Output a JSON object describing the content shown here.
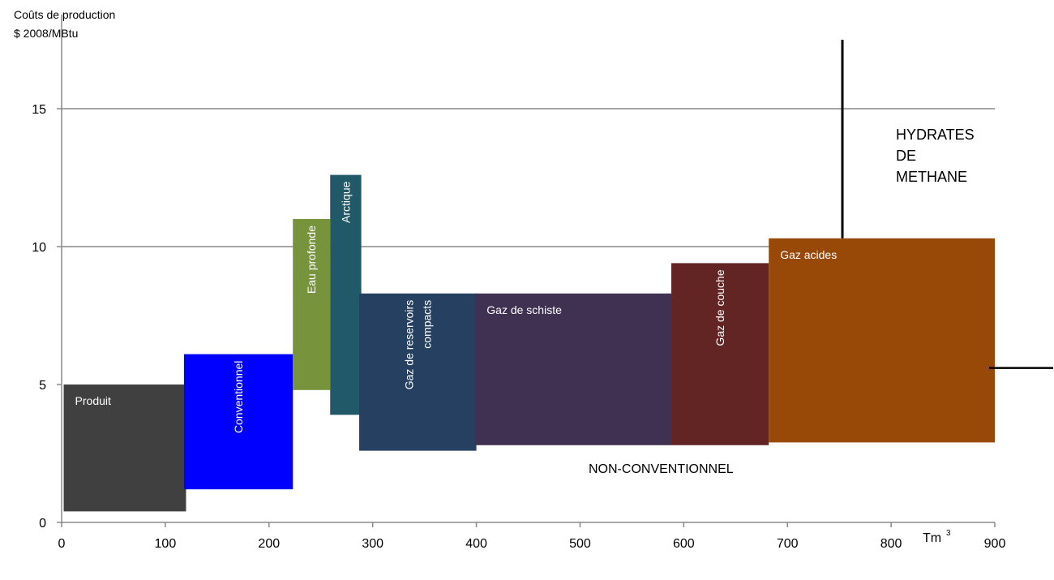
{
  "chart_data": {
    "type": "bar",
    "subtype": "variable-width cost supply blocks",
    "ylabel_lines": [
      "Coûts de production",
      "$ 2008/MBtu"
    ],
    "xlabel": "Tm",
    "xlabel_superscript": "3",
    "xlim": [
      0,
      900
    ],
    "ylim": [
      0,
      18
    ],
    "xticks": [
      "0",
      "100",
      "200",
      "300",
      "400",
      "500",
      "600",
      "700",
      "800",
      "900"
    ],
    "yticks": [
      "0",
      "5",
      "10",
      "15"
    ],
    "gridlines_y": [
      10,
      15
    ],
    "blocks": [
      {
        "label": "Produit",
        "x0": 2,
        "x1": 120,
        "low": 0.4,
        "high": 5.0,
        "color": "#404040",
        "text": "horizontal"
      },
      {
        "label": "Conventionnel",
        "x0": 118,
        "x1": 223,
        "low": 1.2,
        "high": 6.1,
        "color": "#0000ff",
        "text": "vertical"
      },
      {
        "label": "Eau profonde",
        "x0": 223,
        "x1": 259,
        "low": 4.8,
        "high": 11.0,
        "color": "#77933c",
        "text": "vertical"
      },
      {
        "label": "Arctique",
        "x0": 259,
        "x1": 289,
        "low": 3.9,
        "high": 12.6,
        "color": "#215968",
        "text": "vertical"
      },
      {
        "label": "Gaz de  reservoirs compacts",
        "label_lines": [
          "Gaz de  reservoirs",
          "compacts"
        ],
        "x0": 287,
        "x1": 400,
        "low": 2.6,
        "high": 8.3,
        "color": "#254061",
        "text": "vertical"
      },
      {
        "label": "Gaz de schiste",
        "x0": 399,
        "x1": 588,
        "low": 2.8,
        "high": 8.3,
        "color": "#403152",
        "text": "horizontal"
      },
      {
        "label": "Gaz de couche",
        "x0": 588,
        "x1": 682,
        "low": 2.8,
        "high": 9.4,
        "color": "#632523",
        "text": "vertical"
      },
      {
        "label": "Gaz acides",
        "x0": 682,
        "x1": 900,
        "low": 2.9,
        "high": 10.3,
        "color": "#984807",
        "text": "horizontal"
      }
    ],
    "hydrates": {
      "label_lines": [
        "HYDRATES",
        "DE",
        "METHANE"
      ],
      "line_x": 753,
      "line_low": 10.3,
      "line_high": 17.5,
      "arrow_level": 5.6
    },
    "annotations": [
      "NON-CONVENTIONNEL"
    ],
    "grid": true,
    "legend": "none"
  }
}
